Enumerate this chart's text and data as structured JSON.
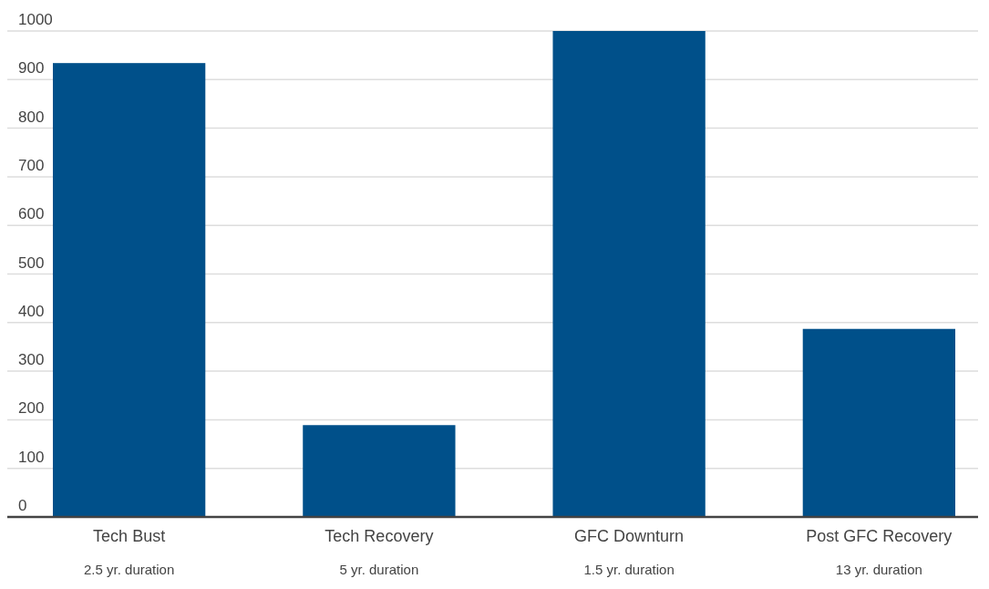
{
  "chart_data": {
    "type": "bar",
    "categories": [
      "Tech Bust\n2.5 yr. duration",
      "Tech Recovery\n5 yr. duration",
      "GFC Downturn\n1.5 yr. duration",
      "Post GFC Recovery\n13 yr. duration"
    ],
    "values": [
      934,
      189,
      1000,
      387
    ],
    "color": "#00508a",
    "ylim": [
      0,
      1000
    ],
    "yticks": [
      0,
      100,
      200,
      300,
      400,
      500,
      600,
      700,
      800,
      900,
      1000
    ],
    "grid": "y"
  }
}
